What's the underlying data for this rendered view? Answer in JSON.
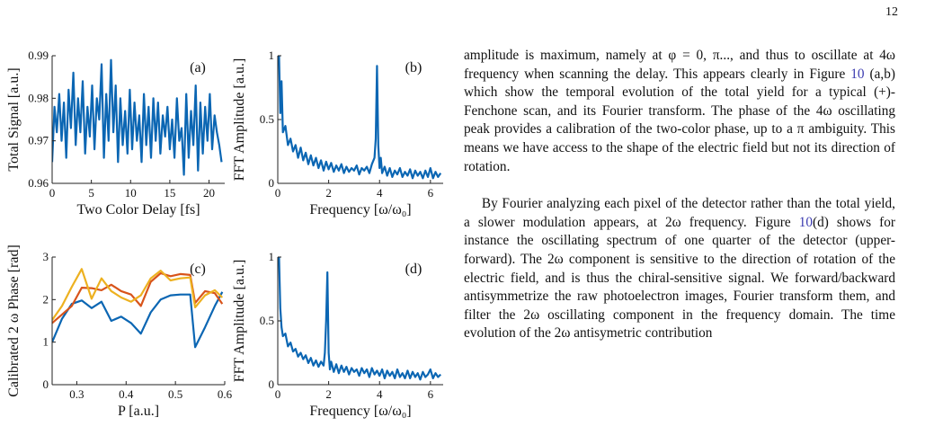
{
  "page_number": "12",
  "accent_color": "#0b66b3",
  "series_colors": {
    "blue": "#0b66b3",
    "orange": "#d8541b",
    "yellow": "#edb120"
  },
  "text": {
    "para1_a": "amplitude is maximum, namely at φ = 0, π..., and thus to oscillate at 4ω frequency when scanning the delay. This appears clearly in Figure ",
    "para1_ref": "10",
    "para1_b": " (a,b) which show the temporal evolution of the total yield for a typical (+)-Fenchone scan, and its Fourier transform. The phase of the 4ω oscillating peak provides a calibration of the two-color phase, up to a π ambiguity. This means we have access to the shape of the electric field but not its direction of rotation.",
    "para2_a": "By Fourier analyzing each pixel of the detector rather than the total yield, a slower modulation appears, at 2ω frequency. Figure ",
    "para2_ref": "10",
    "para2_b": "(d) shows for instance the oscillating spectrum of one quarter of the detector (upper-forward). The 2ω component is sensitive to the direction of rotation of the electric field, and is thus the chiral-sensitive signal. We forward/backward antisymmetrize the raw photoelectron images, Fourier transform them, and filter the 2ω oscillating component in the frequency domain. The time evolution of the 2ω antisymetric contribution"
  },
  "chart_data": [
    {
      "type": "line",
      "panel": "(a)",
      "xlabel": "Two Color Delay [fs]",
      "ylabel": "Total Signal [a.u.]",
      "xlim": [
        0,
        22
      ],
      "ylim": [
        0.96,
        0.99
      ],
      "xticks": [
        "0",
        "5",
        "10",
        "15",
        "20"
      ],
      "yticks": [
        "0.96",
        "0.97",
        "0.98",
        "0.99"
      ],
      "series": [
        {
          "color": "#0b66b3",
          "x": [
            0,
            0.3,
            0.6,
            0.9,
            1.2,
            1.5,
            1.8,
            2.1,
            2.4,
            2.7,
            3.0,
            3.3,
            3.6,
            3.9,
            4.2,
            4.5,
            4.8,
            5.1,
            5.4,
            5.7,
            6.0,
            6.3,
            6.6,
            6.9,
            7.2,
            7.5,
            7.8,
            8.1,
            8.4,
            8.7,
            9.0,
            9.3,
            9.6,
            9.9,
            10.2,
            10.5,
            10.8,
            11.1,
            11.4,
            11.7,
            12.0,
            12.3,
            12.6,
            12.9,
            13.2,
            13.5,
            13.8,
            14.1,
            14.4,
            14.7,
            15.0,
            15.3,
            15.6,
            15.9,
            16.2,
            16.5,
            16.8,
            17.1,
            17.4,
            17.7,
            18.0,
            18.3,
            18.6,
            18.9,
            19.2,
            19.5,
            19.8,
            20.1,
            20.4,
            20.7,
            21.0,
            21.3,
            21.6
          ],
          "y": [
            0.965,
            0.978,
            0.972,
            0.981,
            0.97,
            0.979,
            0.966,
            0.982,
            0.973,
            0.986,
            0.969,
            0.98,
            0.972,
            0.984,
            0.967,
            0.978,
            0.971,
            0.983,
            0.968,
            0.98,
            0.975,
            0.988,
            0.966,
            0.981,
            0.97,
            0.989,
            0.972,
            0.983,
            0.965,
            0.98,
            0.969,
            0.977,
            0.967,
            0.982,
            0.968,
            0.979,
            0.97,
            0.976,
            0.965,
            0.981,
            0.969,
            0.978,
            0.966,
            0.98,
            0.97,
            0.979,
            0.967,
            0.976,
            0.971,
            0.978,
            0.968,
            0.975,
            0.966,
            0.98,
            0.97,
            0.973,
            0.962,
            0.981,
            0.966,
            0.977,
            0.969,
            0.983,
            0.963,
            0.979,
            0.967,
            0.978,
            0.97,
            0.981,
            0.968,
            0.976,
            0.972,
            0.969,
            0.965
          ]
        }
      ]
    },
    {
      "type": "line",
      "panel": "(b)",
      "xlabel": "Frequency [ω/ω₀]",
      "ylabel": "FFT Amplitude [a.u.]",
      "xlim": [
        0,
        6.5
      ],
      "ylim": [
        0,
        1
      ],
      "xticks": [
        "0",
        "2",
        "4",
        "6"
      ],
      "yticks": [
        "0",
        "0.5",
        "1"
      ],
      "series": [
        {
          "color": "#0b66b3",
          "x": [
            0.05,
            0.1,
            0.15,
            0.2,
            0.3,
            0.4,
            0.5,
            0.6,
            0.7,
            0.8,
            0.9,
            1.0,
            1.1,
            1.2,
            1.3,
            1.4,
            1.5,
            1.6,
            1.7,
            1.8,
            1.9,
            2.0,
            2.1,
            2.2,
            2.3,
            2.4,
            2.5,
            2.6,
            2.7,
            2.8,
            2.9,
            3.0,
            3.1,
            3.2,
            3.3,
            3.4,
            3.5,
            3.6,
            3.7,
            3.8,
            3.85,
            3.9,
            3.95,
            4.0,
            4.05,
            4.1,
            4.2,
            4.3,
            4.4,
            4.5,
            4.6,
            4.7,
            4.8,
            4.9,
            5.0,
            5.1,
            5.2,
            5.3,
            5.4,
            5.5,
            5.6,
            5.7,
            5.8,
            5.9,
            6.0,
            6.1,
            6.2,
            6.3,
            6.4
          ],
          "y": [
            1.0,
            0.55,
            0.8,
            0.4,
            0.45,
            0.3,
            0.35,
            0.25,
            0.3,
            0.2,
            0.28,
            0.18,
            0.24,
            0.15,
            0.22,
            0.14,
            0.2,
            0.12,
            0.18,
            0.1,
            0.17,
            0.11,
            0.16,
            0.09,
            0.14,
            0.1,
            0.15,
            0.08,
            0.13,
            0.09,
            0.12,
            0.1,
            0.14,
            0.07,
            0.12,
            0.1,
            0.13,
            0.08,
            0.15,
            0.2,
            0.35,
            0.92,
            0.3,
            0.12,
            0.2,
            0.08,
            0.13,
            0.06,
            0.12,
            0.05,
            0.1,
            0.07,
            0.12,
            0.05,
            0.09,
            0.06,
            0.11,
            0.04,
            0.1,
            0.06,
            0.09,
            0.04,
            0.1,
            0.05,
            0.12,
            0.04,
            0.09,
            0.05,
            0.08
          ]
        }
      ]
    },
    {
      "type": "line",
      "panel": "(c)",
      "xlabel": "P [a.u.]",
      "ylabel": "Calibrated 2 ω Phase [rad]",
      "xlim": [
        0.25,
        0.6
      ],
      "ylim": [
        0,
        3
      ],
      "xticks": [
        "0.3",
        "0.4",
        "0.5",
        "0.6"
      ],
      "yticks": [
        "0",
        "1",
        "2",
        "3"
      ],
      "series": [
        {
          "color": "#0b66b3",
          "x": [
            0.25,
            0.27,
            0.29,
            0.31,
            0.33,
            0.35,
            0.37,
            0.39,
            0.41,
            0.43,
            0.45,
            0.47,
            0.49,
            0.51,
            0.53,
            0.54,
            0.56,
            0.58,
            0.595
          ],
          "y": [
            1.0,
            1.55,
            1.9,
            1.98,
            1.8,
            1.95,
            1.5,
            1.6,
            1.45,
            1.2,
            1.7,
            2.0,
            2.1,
            2.12,
            2.12,
            0.88,
            1.35,
            1.85,
            2.18
          ]
        },
        {
          "color": "#d8541b",
          "x": [
            0.25,
            0.27,
            0.29,
            0.31,
            0.33,
            0.35,
            0.37,
            0.39,
            0.41,
            0.43,
            0.45,
            0.47,
            0.49,
            0.51,
            0.53,
            0.54,
            0.56,
            0.58,
            0.595
          ],
          "y": [
            1.45,
            1.65,
            1.85,
            2.28,
            2.27,
            2.22,
            2.35,
            2.2,
            2.12,
            1.85,
            2.42,
            2.62,
            2.55,
            2.6,
            2.58,
            1.92,
            2.2,
            2.15,
            1.9
          ]
        },
        {
          "color": "#edb120",
          "x": [
            0.25,
            0.27,
            0.29,
            0.31,
            0.33,
            0.35,
            0.37,
            0.39,
            0.41,
            0.43,
            0.45,
            0.47,
            0.49,
            0.51,
            0.53,
            0.54,
            0.56,
            0.58,
            0.595
          ],
          "y": [
            1.52,
            1.85,
            2.3,
            2.72,
            2.02,
            2.5,
            2.2,
            2.05,
            1.95,
            2.1,
            2.5,
            2.68,
            2.45,
            2.5,
            2.52,
            1.82,
            2.1,
            2.22,
            2.05
          ]
        }
      ]
    },
    {
      "type": "line",
      "panel": "(d)",
      "xlabel": "Frequency [ω/ω₀]",
      "ylabel": "FFT Amplitude [a.u.]",
      "xlim": [
        0,
        6.5
      ],
      "ylim": [
        0,
        1
      ],
      "xticks": [
        "0",
        "2",
        "4",
        "6"
      ],
      "yticks": [
        "0",
        "0.5",
        "1"
      ],
      "series": [
        {
          "color": "#0b66b3",
          "x": [
            0.05,
            0.1,
            0.15,
            0.2,
            0.3,
            0.4,
            0.5,
            0.6,
            0.7,
            0.8,
            0.9,
            1.0,
            1.1,
            1.2,
            1.3,
            1.4,
            1.5,
            1.6,
            1.7,
            1.8,
            1.85,
            1.9,
            1.95,
            2.0,
            2.05,
            2.1,
            2.2,
            2.3,
            2.4,
            2.5,
            2.6,
            2.7,
            2.8,
            2.9,
            3.0,
            3.1,
            3.2,
            3.3,
            3.4,
            3.5,
            3.6,
            3.7,
            3.8,
            3.9,
            4.0,
            4.1,
            4.2,
            4.3,
            4.4,
            4.5,
            4.6,
            4.7,
            4.8,
            4.9,
            5.0,
            5.1,
            5.2,
            5.3,
            5.4,
            5.5,
            5.6,
            5.7,
            5.8,
            5.9,
            6.0,
            6.1,
            6.2,
            6.3,
            6.4
          ],
          "y": [
            1.0,
            0.6,
            0.45,
            0.38,
            0.4,
            0.3,
            0.33,
            0.26,
            0.28,
            0.22,
            0.25,
            0.2,
            0.23,
            0.17,
            0.21,
            0.15,
            0.19,
            0.14,
            0.18,
            0.15,
            0.25,
            0.5,
            0.88,
            0.25,
            0.12,
            0.18,
            0.1,
            0.16,
            0.09,
            0.15,
            0.1,
            0.14,
            0.08,
            0.13,
            0.1,
            0.12,
            0.07,
            0.13,
            0.09,
            0.12,
            0.06,
            0.13,
            0.08,
            0.11,
            0.07,
            0.12,
            0.05,
            0.11,
            0.07,
            0.1,
            0.05,
            0.12,
            0.06,
            0.09,
            0.05,
            0.11,
            0.05,
            0.1,
            0.06,
            0.09,
            0.04,
            0.1,
            0.06,
            0.08,
            0.12,
            0.05,
            0.09,
            0.06,
            0.08
          ]
        }
      ]
    }
  ]
}
